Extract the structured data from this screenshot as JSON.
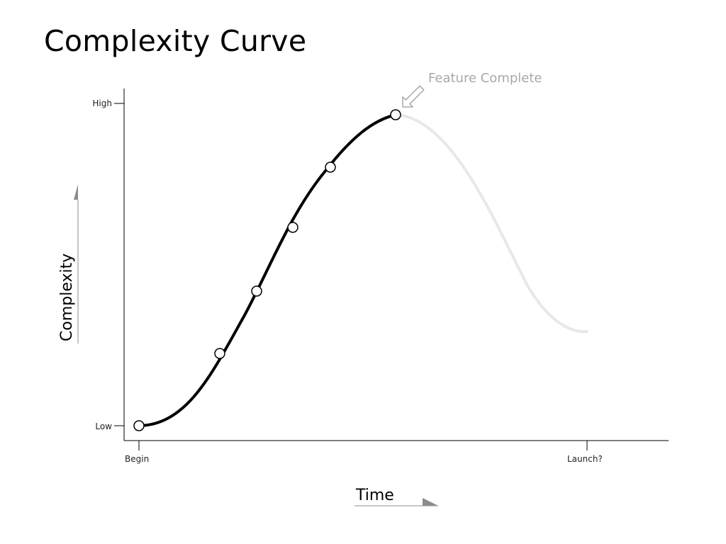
{
  "slide": {
    "title": "Complexity Curve"
  },
  "diagram": {
    "y_axis": {
      "title": "Complexity",
      "high_label": "High",
      "low_label": "Low"
    },
    "x_axis": {
      "title": "Time",
      "begin_label": "Begin",
      "end_label": "Launch?"
    },
    "callout": {
      "text": "Feature Complete"
    }
  },
  "colors": {
    "curve": "#000000",
    "faded_curve": "#e8e8e8",
    "callout": "#a8a8a8",
    "axis_arrow": "#8c8c8c"
  }
}
